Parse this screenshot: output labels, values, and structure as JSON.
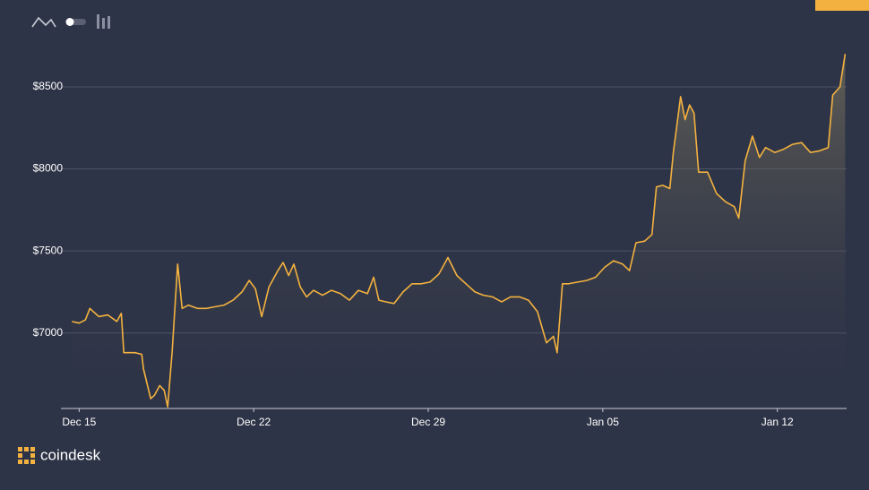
{
  "brand": "coindesk",
  "chart_data": {
    "type": "line",
    "x": [
      -0.29,
      0,
      0.25,
      0.43,
      0.79,
      1.15,
      1.51,
      1.69,
      1.79,
      2.23,
      2.51,
      2.58,
      2.87,
      3.02,
      3.23,
      3.41,
      3.55,
      3.73,
      3.95,
      4.13,
      4.38,
      4.74,
      5.1,
      5.46,
      5.81,
      6.17,
      6.53,
      6.82,
      7.07,
      7.32,
      7.61,
      7.97,
      8.18,
      8.4,
      8.61,
      8.87,
      9.12,
      9.4,
      9.76,
      10.12,
      10.48,
      10.84,
      11.2,
      11.56,
      11.81,
      12.02,
      12.28,
      12.63,
      12.99,
      13.35,
      13.71,
      14.07,
      14.43,
      14.79,
      15.15,
      15.51,
      15.87,
      16.22,
      16.58,
      16.94,
      17.3,
      17.66,
      18.02,
      18.38,
      18.74,
      19.02,
      19.17,
      19.38,
      19.63,
      19.99,
      20.35,
      20.71,
      21.07,
      21.43,
      21.79,
      22.07,
      22.33,
      22.68,
      22.97,
      23.15,
      23.4,
      23.69,
      23.83,
      24.12,
      24.3,
      24.48,
      24.66,
      24.84,
      25.2,
      25.56,
      25.92,
      26.27,
      26.45,
      26.71,
      27.0,
      27.28,
      27.53,
      27.89,
      28.25,
      28.61,
      28.97,
      29.33,
      29.69,
      30.04,
      30.22,
      30.51,
      30.72
    ],
    "values": [
      7070,
      7060,
      7080,
      7150,
      7100,
      7110,
      7070,
      7120,
      6880,
      6880,
      6870,
      6780,
      6600,
      6620,
      6680,
      6650,
      6550,
      6890,
      7420,
      7150,
      7170,
      7150,
      7150,
      7160,
      7170,
      7200,
      7250,
      7320,
      7270,
      7100,
      7280,
      7380,
      7430,
      7350,
      7420,
      7280,
      7220,
      7260,
      7230,
      7260,
      7240,
      7200,
      7260,
      7240,
      7340,
      7200,
      7190,
      7180,
      7250,
      7300,
      7300,
      7310,
      7360,
      7460,
      7350,
      7300,
      7250,
      7230,
      7220,
      7190,
      7220,
      7220,
      7200,
      7130,
      6940,
      6980,
      6880,
      7300,
      7300,
      7310,
      7320,
      7340,
      7400,
      7440,
      7420,
      7380,
      7550,
      7560,
      7600,
      7890,
      7900,
      7880,
      8100,
      8440,
      8300,
      8390,
      8340,
      7980,
      7980,
      7850,
      7800,
      7770,
      7700,
      8050,
      8200,
      8070,
      8130,
      8100,
      8120,
      8150,
      8160,
      8100,
      8110,
      8130,
      8450,
      8500,
      8700
    ],
    "color": "#f3b23f",
    "xlim": [
      -0.3,
      31.1
    ],
    "xticks": [
      {
        "value": 0,
        "label": "Dec 15"
      },
      {
        "value": 7,
        "label": "Dec 22"
      },
      {
        "value": 14,
        "label": "Dec 29"
      },
      {
        "value": 21,
        "label": "Jan 05"
      },
      {
        "value": 28,
        "label": "Jan 12"
      }
    ],
    "ylim": [
      6540,
      8800
    ],
    "yticks": [
      {
        "value": 7000,
        "label": "$7000"
      },
      {
        "value": 7500,
        "label": "$7500"
      },
      {
        "value": 8000,
        "label": "$8000"
      },
      {
        "value": 8500,
        "label": "$8500"
      }
    ],
    "grid": true
  }
}
